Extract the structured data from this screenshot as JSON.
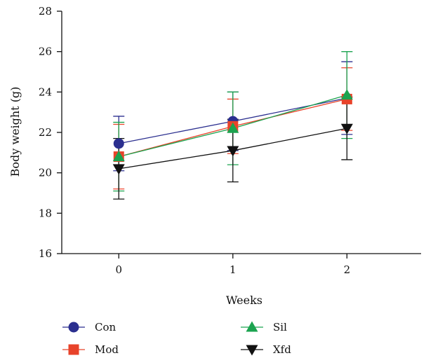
{
  "chart_data": {
    "type": "line",
    "xlabel": "Weeks",
    "ylabel": "Body weight (g)",
    "x": [
      0,
      1,
      2
    ],
    "x_tick_labels": [
      "0",
      "1",
      "2"
    ],
    "xlim": [
      -0.5,
      2.65
    ],
    "ylim": [
      16,
      28
    ],
    "y_ticks": [
      16,
      18,
      20,
      22,
      24,
      26,
      28
    ],
    "y_tick_labels": [
      "16",
      "18",
      "20",
      "22",
      "24",
      "26",
      "28"
    ],
    "grid": false,
    "legend_position": "bottom",
    "series": [
      {
        "name": "Con",
        "marker": "circle",
        "color": "#2B2F8F",
        "values": [
          21.45,
          22.55,
          23.7
        ],
        "error": [
          1.35,
          1.45,
          1.8
        ]
      },
      {
        "name": "Mod",
        "marker": "square",
        "color": "#E8432A",
        "values": [
          20.8,
          22.3,
          23.65
        ],
        "error": [
          1.6,
          1.35,
          1.55
        ]
      },
      {
        "name": "Sil",
        "marker": "triangle-up",
        "color": "#1BA34F",
        "values": [
          20.8,
          22.2,
          23.85
        ],
        "error": [
          1.7,
          1.8,
          2.15
        ]
      },
      {
        "name": "Xfd",
        "marker": "triangle-down",
        "color": "#111111",
        "values": [
          20.2,
          21.1,
          22.2
        ],
        "error": [
          1.5,
          1.55,
          1.55
        ]
      }
    ]
  }
}
